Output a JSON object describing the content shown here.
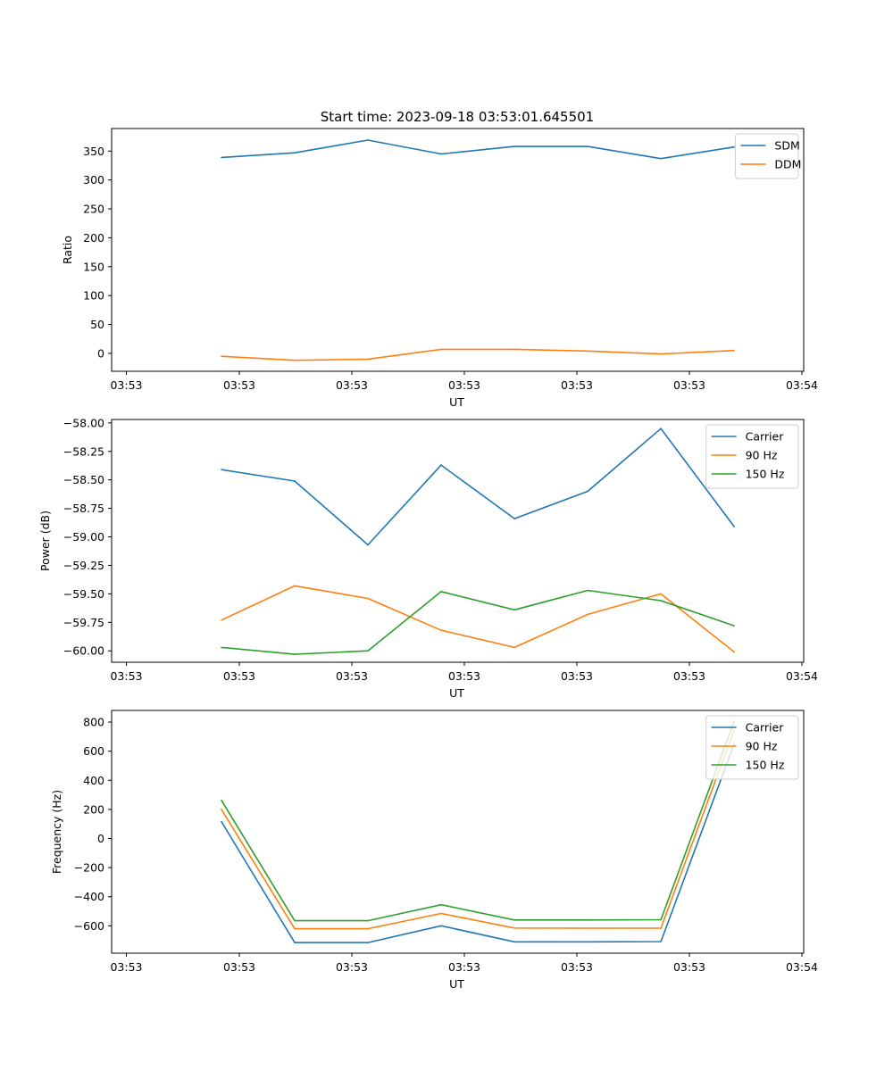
{
  "figure_title": "Start time: 2023-09-18 03:53:01.645501",
  "colors": {
    "blue": "#1f77b4",
    "orange": "#ff7f0e",
    "green": "#2ca02c"
  },
  "chart_data": [
    {
      "type": "line",
      "title": "Start time: 2023-09-18 03:53:01.645501",
      "xlabel": "UT",
      "ylabel": "Ratio",
      "xtick_labels": [
        "03:53",
        "03:53",
        "03:53",
        "03:53",
        "03:53",
        "03:53",
        "03:53",
        "03:54"
      ],
      "xlim": [
        -0.5,
        8.95
      ],
      "ylim": [
        -31,
        389
      ],
      "yticks": [
        0,
        50,
        100,
        150,
        200,
        250,
        300,
        350
      ],
      "ytick_labels": [
        "0",
        "50",
        "100",
        "150",
        "200",
        "250",
        "300",
        "350"
      ],
      "legend_position": "top-right",
      "x": [
        1,
        2,
        3,
        4,
        5,
        6,
        7,
        8
      ],
      "series": [
        {
          "name": "SDM",
          "color": "#1f77b4",
          "values": [
            339,
            347,
            369,
            345,
            358,
            358,
            337,
            357
          ]
        },
        {
          "name": "DDM",
          "color": "#ff7f0e",
          "values": [
            -5,
            -12,
            -10,
            7,
            7,
            4,
            -1,
            5
          ]
        }
      ]
    },
    {
      "type": "line",
      "title": "",
      "xlabel": "UT",
      "ylabel": "Power (dB)",
      "xtick_labels": [
        "03:53",
        "03:53",
        "03:53",
        "03:53",
        "03:53",
        "03:53",
        "03:53",
        "03:54"
      ],
      "xlim": [
        -0.5,
        8.95
      ],
      "ylim": [
        -60.1,
        -57.97
      ],
      "yticks": [
        -58.0,
        -58.25,
        -58.5,
        -58.75,
        -59.0,
        -59.25,
        -59.5,
        -59.75,
        -60.0
      ],
      "ytick_labels": [
        "−58.00",
        "−58.25",
        "−58.50",
        "−58.75",
        "−59.00",
        "−59.25",
        "−59.50",
        "−59.75",
        "−60.00"
      ],
      "legend_position": "top-right",
      "x": [
        1,
        2,
        3,
        4,
        5,
        6,
        7,
        8
      ],
      "series": [
        {
          "name": "Carrier",
          "color": "#1f77b4",
          "values": [
            -58.41,
            -58.51,
            -59.07,
            -58.37,
            -58.84,
            -58.6,
            -58.05,
            -58.91
          ]
        },
        {
          "name": "90 Hz",
          "color": "#ff7f0e",
          "values": [
            -59.73,
            -59.43,
            -59.54,
            -59.82,
            -59.97,
            -59.68,
            -59.5,
            -60.01
          ]
        },
        {
          "name": "150 Hz",
          "color": "#2ca02c",
          "values": [
            -59.97,
            -60.03,
            -60.0,
            -59.48,
            -59.64,
            -59.47,
            -59.56,
            -59.78
          ]
        }
      ]
    },
    {
      "type": "line",
      "title": "",
      "xlabel": "UT",
      "ylabel": "Frequency (Hz)",
      "xtick_labels": [
        "03:53",
        "03:53",
        "03:53",
        "03:53",
        "03:53",
        "03:53",
        "03:53",
        "03:54"
      ],
      "xlim": [
        -0.5,
        8.95
      ],
      "ylim": [
        -788,
        880
      ],
      "yticks": [
        800,
        600,
        400,
        200,
        0,
        -200,
        -400,
        -600
      ],
      "ytick_labels": [
        "800",
        "600",
        "400",
        "200",
        "0",
        "−200",
        "−400",
        "−600"
      ],
      "legend_position": "top-right",
      "x": [
        1,
        2,
        3,
        4,
        5,
        6,
        7,
        8
      ],
      "series": [
        {
          "name": "Carrier",
          "color": "#1f77b4",
          "values": [
            115,
            -715,
            -715,
            -600,
            -710,
            -710,
            -708,
            650
          ]
        },
        {
          "name": "90 Hz",
          "color": "#ff7f0e",
          "values": [
            200,
            -620,
            -620,
            -515,
            -615,
            -616,
            -616,
            745
          ]
        },
        {
          "name": "150 Hz",
          "color": "#2ca02c",
          "values": [
            262,
            -565,
            -565,
            -455,
            -560,
            -560,
            -558,
            805
          ]
        }
      ]
    }
  ]
}
